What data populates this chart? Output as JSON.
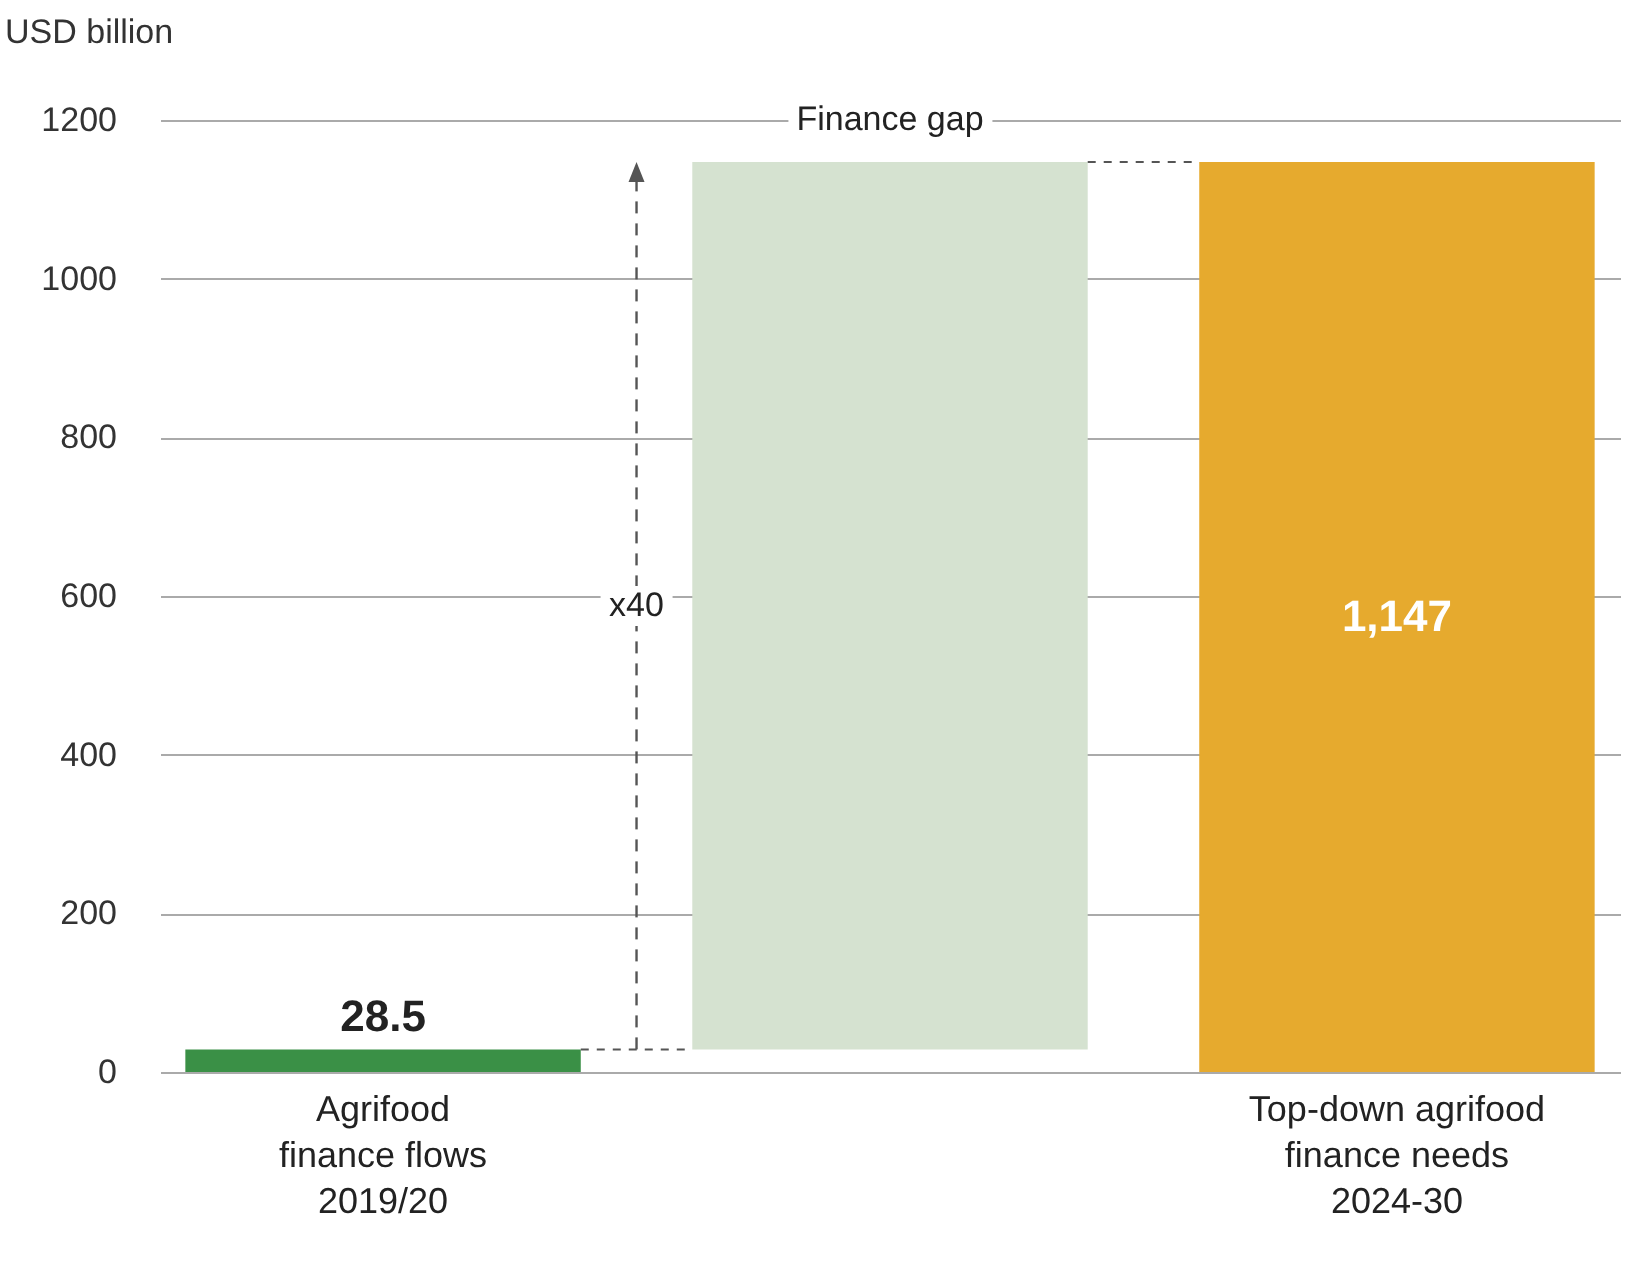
{
  "chart_data": {
    "type": "bar",
    "ylabel": "USD billion",
    "categories": [
      "Agrifood\nfinance flows\n2019/20",
      null,
      "Top-down agrifood\nfinance needs\n2024-30"
    ],
    "values": [
      28.5,
      1118.5,
      1147
    ],
    "base": [
      0,
      28.5,
      0
    ],
    "colors": [
      "#3a9046",
      "#d5e2d0",
      "#e6aa2e"
    ],
    "value_labels": [
      "28.5",
      null,
      "1,147"
    ],
    "ylim": [
      0,
      1200
    ],
    "yticks": [
      0,
      200,
      400,
      600,
      800,
      {
        "value": 1000,
        "label": "1000"
      },
      {
        "value": 1200,
        "label": "1200"
      }
    ],
    "grid": "y",
    "annotations": [
      "Finance gap",
      "x40"
    ]
  }
}
